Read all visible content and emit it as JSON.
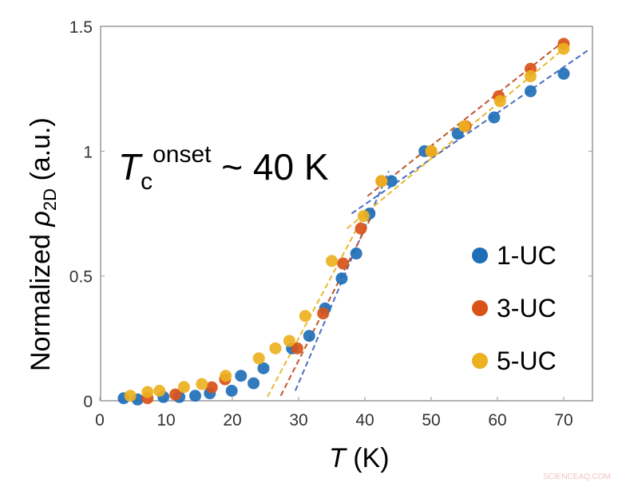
{
  "chart_data": {
    "type": "scatter",
    "xlabel_italic": "T",
    "xlabel_unit": "(K)",
    "ylabel_main": "Normalized ",
    "ylabel_symbol": "ρ",
    "ylabel_sub": "2D",
    "ylabel_unit": " (a.u.)",
    "xlim": [
      0,
      75
    ],
    "ylim": [
      0,
      1.5
    ],
    "xticks": [
      "0",
      "10",
      "20",
      "30",
      "40",
      "50",
      "60",
      "70"
    ],
    "yticks": [
      "0",
      "0.5",
      "1",
      "1.5"
    ],
    "grid": false,
    "legend_placement": "right",
    "annotation": {
      "main": "T",
      "sub": "c",
      "sup": "onset",
      "rest": " ~ 40 K"
    },
    "series": [
      {
        "name": "1-UC",
        "color": "#1f6fb8",
        "line_color": "#4a6fc0",
        "points": [
          [
            3.6,
            0.01
          ],
          [
            5.7,
            0.005
          ],
          [
            9.6,
            0.015
          ],
          [
            12,
            0.015
          ],
          [
            14.4,
            0.02
          ],
          [
            16.6,
            0.03
          ],
          [
            19.9,
            0.04
          ],
          [
            21.3,
            0.1
          ],
          [
            23.2,
            0.07
          ],
          [
            24.7,
            0.13
          ],
          [
            29,
            0.21
          ],
          [
            31.6,
            0.26
          ],
          [
            34,
            0.37
          ],
          [
            36.5,
            0.49
          ],
          [
            38.7,
            0.59
          ],
          [
            40.7,
            0.75
          ],
          [
            44,
            0.88
          ],
          [
            49,
            1.0
          ],
          [
            54,
            1.07
          ],
          [
            59.5,
            1.135
          ],
          [
            65,
            1.24
          ],
          [
            70,
            1.31
          ]
        ],
        "fits": [
          [
            [
              29.5,
              0.04
            ],
            [
              43.6,
              0.92
            ]
          ],
          [
            [
              38,
              0.75
            ],
            [
              74,
              1.41
            ]
          ]
        ]
      },
      {
        "name": "3-UC",
        "color": "#d95319",
        "line_color": "#c0562a",
        "points": [
          [
            7.2,
            0.01
          ],
          [
            11.4,
            0.025
          ],
          [
            16.9,
            0.054
          ],
          [
            18.9,
            0.086
          ],
          [
            29.8,
            0.21
          ],
          [
            33.7,
            0.35
          ],
          [
            36.7,
            0.55
          ],
          [
            39.4,
            0.69
          ],
          [
            42.5,
            0.88
          ],
          [
            50,
            1.0
          ],
          [
            55.2,
            1.1
          ],
          [
            60.2,
            1.22
          ],
          [
            65,
            1.33
          ],
          [
            70,
            1.43
          ]
        ],
        "fits": [
          [
            [
              27.3,
              0.02
            ],
            [
              41.6,
              0.77
            ]
          ],
          [
            [
              40.4,
              0.82
            ],
            [
              70,
              1.44
            ]
          ]
        ]
      },
      {
        "name": "5-UC",
        "color": "#edb120",
        "line_color": "#e8b830",
        "points": [
          [
            4.6,
            0.02
          ],
          [
            7.2,
            0.035
          ],
          [
            9,
            0.04
          ],
          [
            12.7,
            0.055
          ],
          [
            15.4,
            0.067
          ],
          [
            19,
            0.1
          ],
          [
            24,
            0.17
          ],
          [
            26.5,
            0.21
          ],
          [
            28.6,
            0.24
          ],
          [
            31,
            0.34
          ],
          [
            35,
            0.56
          ],
          [
            39.8,
            0.74
          ],
          [
            42.5,
            0.88
          ],
          [
            50,
            1.0
          ],
          [
            55,
            1.1
          ],
          [
            60.4,
            1.2
          ],
          [
            65,
            1.3
          ],
          [
            70,
            1.41
          ]
        ],
        "fits": [
          [
            [
              25.3,
              0.016
            ],
            [
              40.4,
              0.77
            ]
          ],
          [
            [
              37.3,
              0.69
            ],
            [
              70,
              1.41
            ]
          ]
        ]
      }
    ]
  },
  "watermark": "SCIENCEAQ.COM"
}
